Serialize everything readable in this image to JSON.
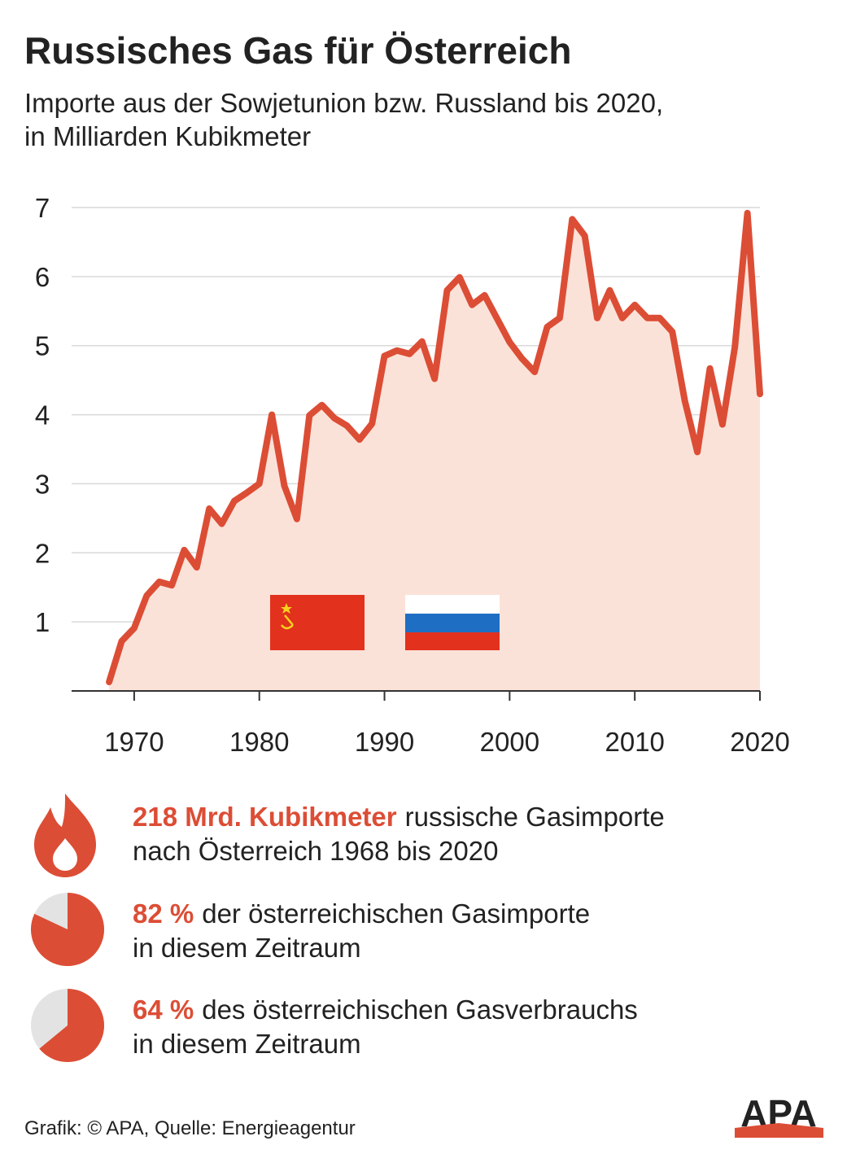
{
  "chart_data": {
    "type": "line",
    "title": "Russisches Gas für Österreich",
    "subtitle": [
      "Importe aus der Sowjetunion bzw. Russland bis 2020,",
      "in Milliarden Kubikmeter"
    ],
    "x": [
      1968,
      1969,
      1970,
      1971,
      1972,
      1973,
      1974,
      1975,
      1976,
      1977,
      1978,
      1979,
      1980,
      1981,
      1982,
      1983,
      1984,
      1985,
      1986,
      1987,
      1988,
      1989,
      1990,
      1991,
      1992,
      1993,
      1994,
      1995,
      1996,
      1997,
      1998,
      1999,
      2000,
      2001,
      2002,
      2003,
      2004,
      2005,
      2006,
      2007,
      2008,
      2009,
      2010,
      2011,
      2012,
      2013,
      2014,
      2015,
      2016,
      2017,
      2018,
      2019,
      2020
    ],
    "values": [
      0.13,
      0.72,
      0.91,
      1.38,
      1.58,
      1.53,
      2.04,
      1.79,
      2.64,
      2.42,
      2.75,
      2.87,
      3.0,
      4.0,
      2.97,
      2.49,
      3.99,
      4.14,
      3.95,
      3.84,
      3.64,
      3.87,
      4.85,
      4.93,
      4.88,
      5.06,
      4.52,
      5.8,
      5.99,
      5.59,
      5.73,
      5.39,
      5.05,
      4.81,
      4.62,
      5.27,
      5.4,
      6.83,
      6.59,
      5.4,
      5.8,
      5.4,
      5.59,
      5.4,
      5.4,
      5.2,
      4.2,
      3.46,
      4.67,
      3.86,
      4.98,
      6.92,
      4.3
    ],
    "color": "#dc4d35",
    "area_color": "#fbe2d8",
    "xlim": [
      1965,
      2020
    ],
    "xticks": [
      1970,
      1980,
      1990,
      2000,
      2010,
      2020
    ],
    "ylim": [
      0,
      7
    ],
    "yticks": [
      1,
      2,
      3,
      4,
      5,
      6,
      7
    ],
    "grid": true
  },
  "facts": [
    {
      "highlight": "218 Mrd. Kubikmeter",
      "text": [
        "russische Gasimporte",
        "nach Österreich 1968 bis 2020"
      ]
    },
    {
      "share": 82,
      "highlight": "82 %",
      "text": [
        "der österreichischen Gasimporte",
        "in diesem Zeitraum"
      ]
    },
    {
      "share": 64,
      "highlight": "64 %",
      "text": [
        "des österreichischen Gasverbrauchs",
        "in diesem Zeitraum"
      ]
    }
  ],
  "source": "Grafik: © APA, Quelle: Energieagentur",
  "logo": "APA"
}
